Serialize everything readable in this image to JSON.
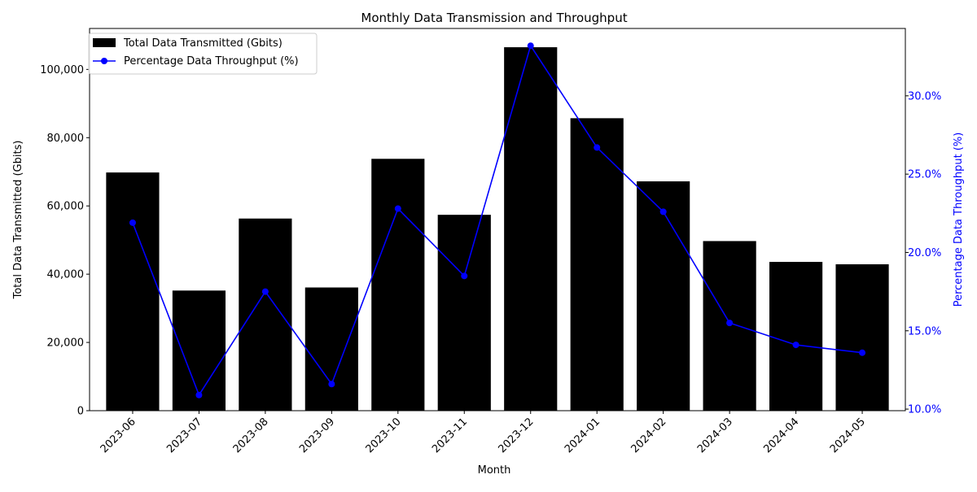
{
  "chart_data": {
    "type": "bar+line",
    "title": "Monthly Data Transmission and Throughput",
    "xlabel": "Month",
    "ylabel_left": "Total Data Transmitted (Gbits)",
    "ylabel_right": "Percentage Data Throughput (%)",
    "categories": [
      "2023-06",
      "2023-07",
      "2023-08",
      "2023-09",
      "2023-10",
      "2023-11",
      "2023-12",
      "2024-01",
      "2024-02",
      "2024-03",
      "2024-04",
      "2024-05"
    ],
    "series": [
      {
        "name": "Total Data Transmitted (Gbits)",
        "type": "bar",
        "axis": "left",
        "color": "#000000",
        "values": [
          69800,
          35200,
          56300,
          36100,
          73800,
          57400,
          106500,
          85700,
          67200,
          49700,
          43600,
          42900
        ]
      },
      {
        "name": "Percentage Data Throughput (%)",
        "type": "line",
        "axis": "right",
        "color": "#0000ff",
        "values": [
          21.9,
          10.9,
          17.5,
          11.6,
          22.8,
          18.5,
          33.2,
          26.7,
          22.6,
          15.5,
          14.1,
          13.6
        ]
      }
    ],
    "ylim_left": [
      0,
      112000
    ],
    "yticks_left": [
      0,
      20000,
      40000,
      60000,
      80000,
      100000
    ],
    "yticks_left_labels": [
      "0",
      "20,000",
      "40,000",
      "60,000",
      "80,000",
      "100,000"
    ],
    "ylim_right": [
      9.9,
      34.3
    ],
    "yticks_right": [
      10,
      15,
      20,
      25,
      30
    ],
    "yticks_right_labels": [
      "10.0%",
      "15.0%",
      "20.0%",
      "25.0%",
      "30.0%"
    ],
    "legend_position": "top-left",
    "grid": false
  }
}
